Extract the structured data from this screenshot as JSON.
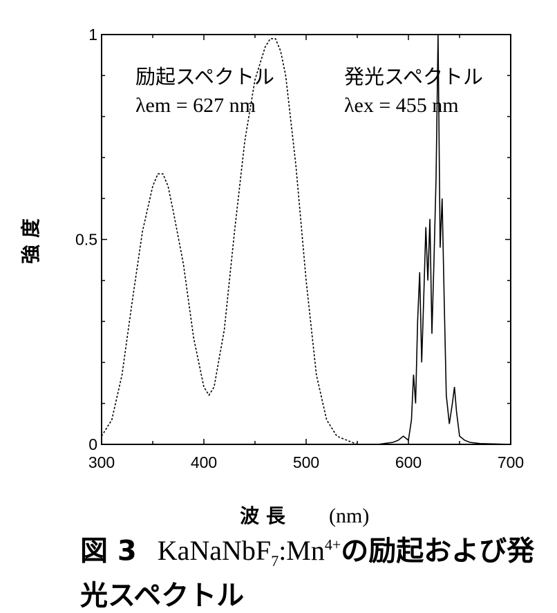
{
  "chart_data": {
    "type": "line",
    "xlabel": "波 長",
    "xunit": "(nm)",
    "ylabel": "強 度",
    "xlim": [
      300,
      700
    ],
    "ylim": [
      0,
      1
    ],
    "xticks": [
      300,
      400,
      500,
      600,
      700
    ],
    "yticks": [
      0,
      0.5,
      1
    ],
    "xtick_labels": [
      "300",
      "400",
      "500",
      "600",
      "700"
    ],
    "ytick_labels": [
      "0",
      "0.5",
      "1"
    ],
    "grid": false,
    "series": [
      {
        "name": "励起スペクトル",
        "param": "λem = 627 nm",
        "style": "dashed",
        "x": [
          300,
          310,
          320,
          330,
          340,
          350,
          355,
          360,
          365,
          370,
          380,
          390,
          400,
          405,
          410,
          420,
          430,
          440,
          450,
          460,
          465,
          470,
          475,
          480,
          490,
          500,
          510,
          520,
          530,
          540,
          550
        ],
        "y": [
          0.02,
          0.06,
          0.17,
          0.35,
          0.52,
          0.63,
          0.66,
          0.66,
          0.63,
          0.57,
          0.44,
          0.26,
          0.14,
          0.12,
          0.14,
          0.28,
          0.52,
          0.74,
          0.89,
          0.97,
          0.99,
          0.99,
          0.96,
          0.9,
          0.68,
          0.4,
          0.17,
          0.06,
          0.02,
          0.01,
          0.0
        ]
      },
      {
        "name": "発光スペクトル",
        "param": "λex = 455 nm",
        "style": "solid",
        "x": [
          550,
          570,
          585,
          590,
          595,
          600,
          603,
          605,
          607,
          609,
          611,
          613,
          615,
          617,
          619,
          621,
          623,
          625,
          627,
          629,
          631,
          633,
          635,
          637,
          640,
          643,
          645,
          647,
          650,
          655,
          660,
          670,
          700
        ],
        "y": [
          0,
          0,
          0.005,
          0.01,
          0.02,
          0.01,
          0.06,
          0.17,
          0.1,
          0.3,
          0.42,
          0.2,
          0.36,
          0.53,
          0.4,
          0.55,
          0.27,
          0.45,
          0.65,
          1.0,
          0.48,
          0.6,
          0.35,
          0.12,
          0.05,
          0.1,
          0.14,
          0.08,
          0.02,
          0.01,
          0.005,
          0.002,
          0.0
        ]
      }
    ]
  },
  "caption": {
    "fig_label": "図 3",
    "formula": "KaNaNbF",
    "formula_sub": "7",
    "formula_mid": ":Mn",
    "formula_sup": "4+",
    "text": "の励起および発光スペクトル"
  }
}
